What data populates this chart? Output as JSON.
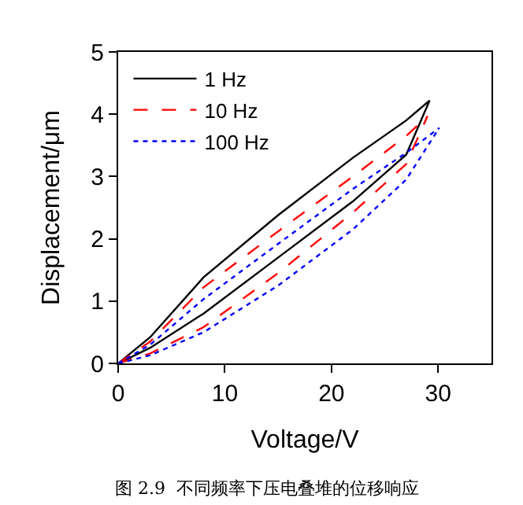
{
  "chart_data": {
    "type": "line",
    "xlabel": "Voltage/V",
    "ylabel": "Displacement/μm",
    "xlim": [
      0,
      35
    ],
    "xticks": [
      0,
      10,
      20,
      30
    ],
    "ylim": [
      0,
      5
    ],
    "yticks": [
      0,
      1,
      2,
      3,
      4,
      5
    ],
    "legend": "top left",
    "marker": "none",
    "annotations": [
      "图 2.9  不同频率下压电叠堆的位移响应"
    ],
    "series": [
      {
        "name": "1 Hz",
        "color": "#000000",
        "line_style": "solid",
        "x": [
          0,
          3,
          8,
          15,
          22,
          27,
          29.2
        ],
        "values": [
          0,
          0.25,
          0.8,
          1.7,
          2.6,
          3.35,
          4.22
        ]
      },
      {
        "color": "#000000",
        "line_style": "solid",
        "x": [
          0,
          3,
          8,
          15,
          22,
          27,
          29.2
        ],
        "values": [
          0,
          0.42,
          1.38,
          2.38,
          3.3,
          3.9,
          4.22
        ]
      },
      {
        "name": "10 Hz",
        "color": "#ff0000",
        "line_style": "dashed",
        "x": [
          0,
          3,
          8,
          15,
          22,
          27,
          29.0
        ],
        "values": [
          0,
          0.16,
          0.58,
          1.45,
          2.42,
          3.2,
          3.97
        ]
      },
      {
        "color": "#ff0000",
        "line_style": "dashed",
        "x": [
          0,
          3,
          8,
          15,
          22,
          27,
          29.0
        ],
        "values": [
          0,
          0.35,
          1.22,
          2.12,
          3.0,
          3.65,
          3.97
        ]
      },
      {
        "name": "100 Hz",
        "color": "#0000ff",
        "line_style": "dotted",
        "x": [
          0,
          3,
          8,
          15,
          22,
          27,
          30.1
        ],
        "values": [
          0,
          0.13,
          0.5,
          1.25,
          2.15,
          2.95,
          3.78
        ]
      },
      {
        "color": "#0000ff",
        "line_style": "dotted",
        "x": [
          0,
          3,
          8,
          15,
          22,
          27,
          30.1
        ],
        "values": [
          0,
          0.3,
          1.03,
          1.92,
          2.8,
          3.38,
          3.78
        ]
      }
    ]
  }
}
